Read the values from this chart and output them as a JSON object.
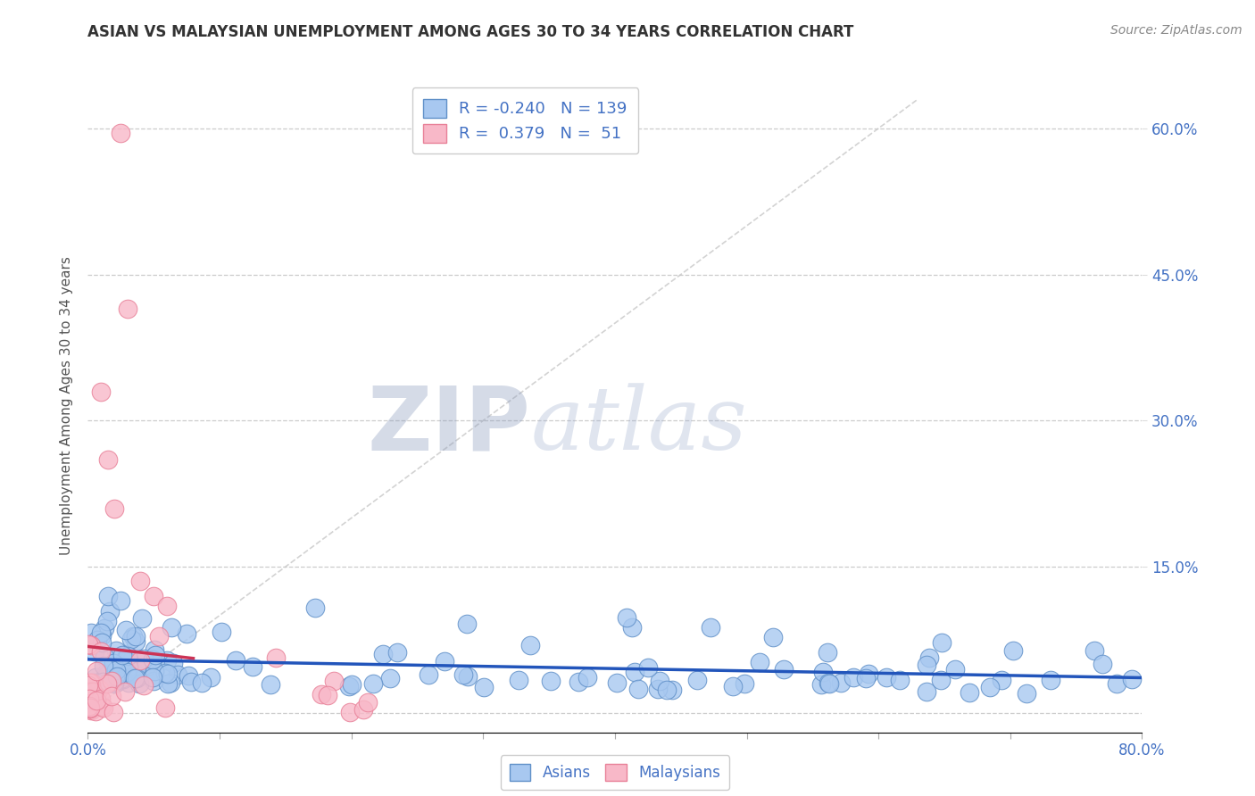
{
  "title": "ASIAN VS MALAYSIAN UNEMPLOYMENT AMONG AGES 30 TO 34 YEARS CORRELATION CHART",
  "source_text": "Source: ZipAtlas.com",
  "ylabel": "Unemployment Among Ages 30 to 34 years",
  "xlim": [
    0.0,
    0.8
  ],
  "ylim": [
    -0.02,
    0.65
  ],
  "xticks": [
    0.0,
    0.1,
    0.2,
    0.3,
    0.4,
    0.5,
    0.6,
    0.7,
    0.8
  ],
  "xticklabels_visible": [
    "0.0%",
    "",
    "",
    "",
    "",
    "",
    "",
    "",
    "80.0%"
  ],
  "yticks_right": [
    0.15,
    0.3,
    0.45,
    0.6
  ],
  "yticklabels_right": [
    "15.0%",
    "30.0%",
    "45.0%",
    "60.0%"
  ],
  "asian_color": "#A8C8F0",
  "malaysian_color": "#F8B8C8",
  "asian_edge_color": "#6090C8",
  "malaysian_edge_color": "#E88098",
  "trend_asian_color": "#2255BB",
  "trend_malaysian_color": "#CC3355",
  "R_asian": -0.24,
  "N_asian": 139,
  "R_malaysian": 0.379,
  "N_malaysian": 51,
  "legend_asian_label": "Asians",
  "legend_malaysian_label": "Malaysians",
  "watermark_zip": "ZIP",
  "watermark_atlas": "atlas",
  "background_color": "#FFFFFF",
  "grid_color": "#CCCCCC",
  "title_color": "#333333",
  "axis_label_color": "#555555",
  "tick_color": "#4472C4",
  "legend_text_color": "#4472C4"
}
